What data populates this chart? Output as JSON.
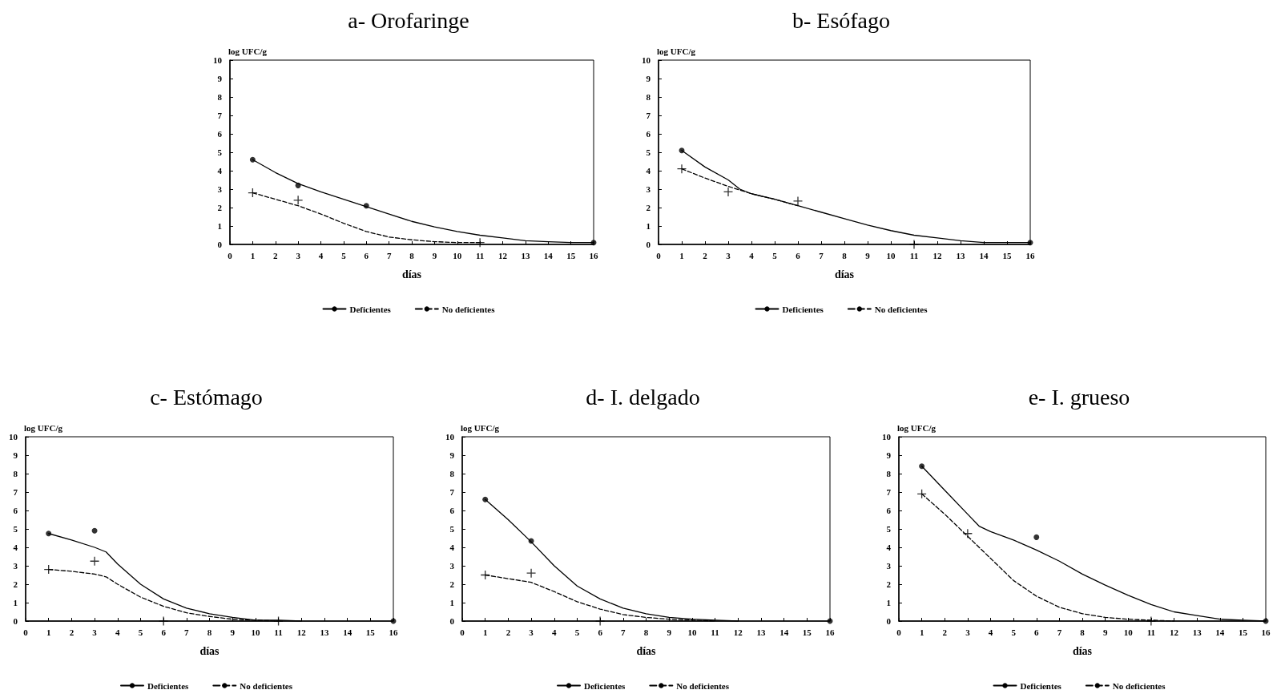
{
  "chart_data": [
    {
      "type": "line",
      "title": "a- Orofaringe",
      "xlabel": "días",
      "ylabel": "log UFC/g",
      "xlim": [
        0,
        16
      ],
      "xticks": [
        0,
        1,
        2,
        3,
        4,
        5,
        6,
        7,
        8,
        9,
        10,
        11,
        12,
        13,
        14,
        15,
        16
      ],
      "ylim": [
        0,
        10
      ],
      "yticks": [
        0,
        1,
        2,
        3,
        4,
        5,
        6,
        7,
        8,
        9,
        10
      ],
      "legend": "bottom",
      "grid": false,
      "series": [
        {
          "name": "Deficientes",
          "color": "#000000",
          "line_style": "solid",
          "marker": "none",
          "x": [
            1,
            2,
            3,
            4,
            5,
            6,
            7,
            8,
            9,
            10,
            11,
            12,
            13,
            14,
            15,
            16
          ],
          "values": [
            4.6,
            3.9,
            3.3,
            2.85,
            2.45,
            2.05,
            1.65,
            1.25,
            0.95,
            0.7,
            0.5,
            0.35,
            0.2,
            0.15,
            0.1,
            0.1
          ]
        },
        {
          "name": "No deficientes",
          "color": "#000000",
          "line_style": "dashed",
          "marker": "none",
          "x": [
            1,
            2,
            3,
            4,
            5,
            6,
            7,
            8,
            9,
            10,
            11
          ],
          "values": [
            2.8,
            2.45,
            2.1,
            1.65,
            1.15,
            0.7,
            0.4,
            0.25,
            0.15,
            0.1,
            0.1
          ]
        },
        {
          "type": "scatter",
          "color": "#000000",
          "marker": "circle",
          "x": [
            1,
            3,
            6,
            11,
            16
          ],
          "values": [
            4.6,
            3.2,
            2.1,
            null,
            0.1
          ]
        },
        {
          "type": "scatter",
          "color": "#000000",
          "marker": "cross",
          "x": [
            1,
            3,
            11
          ],
          "values": [
            2.8,
            2.4,
            0.1
          ]
        }
      ]
    },
    {
      "type": "line",
      "title": "b- Esófago",
      "xlabel": "días",
      "ylabel": "log UFC/g",
      "xlim": [
        0,
        16
      ],
      "xticks": [
        0,
        1,
        2,
        3,
        4,
        5,
        6,
        7,
        8,
        9,
        10,
        11,
        12,
        13,
        14,
        15,
        16
      ],
      "ylim": [
        0,
        10
      ],
      "yticks": [
        0,
        1,
        2,
        3,
        4,
        5,
        6,
        7,
        8,
        9,
        10
      ],
      "legend": "bottom",
      "grid": false,
      "series": [
        {
          "name": "Deficientes",
          "color": "#000000",
          "line_style": "solid",
          "marker": "none",
          "x": [
            1,
            2,
            3,
            3.5,
            4,
            5,
            6,
            7,
            8,
            9,
            10,
            11,
            12,
            13,
            14,
            15,
            16
          ],
          "values": [
            5.1,
            4.2,
            3.5,
            3.0,
            2.75,
            2.45,
            2.1,
            1.75,
            1.4,
            1.05,
            0.75,
            0.5,
            0.35,
            0.2,
            0.1,
            0.1,
            0.1
          ]
        },
        {
          "name": "No deficientes",
          "color": "#000000",
          "line_style": "dashed",
          "marker": "none",
          "x": [
            1,
            2,
            3,
            4,
            5,
            6
          ],
          "values": [
            4.1,
            3.6,
            3.15,
            2.75,
            2.45,
            2.1
          ]
        },
        {
          "type": "scatter",
          "color": "#000000",
          "marker": "circle",
          "x": [
            1,
            16
          ],
          "values": [
            5.1,
            0.1
          ]
        },
        {
          "type": "scatter",
          "color": "#000000",
          "marker": "cross",
          "x": [
            1,
            3,
            6,
            11
          ],
          "values": [
            4.1,
            2.85,
            2.35,
            0
          ]
        }
      ]
    },
    {
      "type": "line",
      "title": "c- Estómago",
      "xlabel": "días",
      "ylabel": "log UFC/g",
      "xlim": [
        0,
        16
      ],
      "xticks": [
        0,
        1,
        2,
        3,
        4,
        5,
        6,
        7,
        8,
        9,
        10,
        11,
        12,
        13,
        14,
        15,
        16
      ],
      "ylim": [
        0,
        10
      ],
      "yticks": [
        0,
        1,
        2,
        3,
        4,
        5,
        6,
        7,
        8,
        9,
        10
      ],
      "legend": "bottom",
      "grid": false,
      "series": [
        {
          "name": "Deficientes",
          "color": "#000000",
          "line_style": "solid",
          "marker": "none",
          "x": [
            1,
            2,
            3,
            3.5,
            4,
            5,
            6,
            7,
            8,
            9,
            10,
            11,
            12
          ],
          "values": [
            4.75,
            4.4,
            4.0,
            3.75,
            3.1,
            2.0,
            1.2,
            0.7,
            0.4,
            0.2,
            0.05,
            0.05,
            0
          ]
        },
        {
          "name": "No deficientes",
          "color": "#000000",
          "line_style": "dashed",
          "marker": "none",
          "x": [
            1,
            2,
            3,
            3.5,
            4,
            5,
            6,
            7,
            8,
            9,
            10,
            11
          ],
          "values": [
            2.8,
            2.7,
            2.55,
            2.4,
            2.0,
            1.3,
            0.8,
            0.45,
            0.25,
            0.1,
            0.05,
            0
          ]
        },
        {
          "type": "scatter",
          "color": "#000000",
          "marker": "circle",
          "x": [
            1,
            3,
            16
          ],
          "values": [
            4.75,
            4.9,
            0
          ]
        },
        {
          "type": "scatter",
          "color": "#000000",
          "marker": "cross",
          "x": [
            1,
            3,
            6,
            11
          ],
          "values": [
            2.8,
            3.25,
            0,
            0
          ]
        }
      ]
    },
    {
      "type": "line",
      "title": "d- I. delgado",
      "xlabel": "días",
      "ylabel": "log UFC/g",
      "xlim": [
        0,
        16
      ],
      "xticks": [
        0,
        1,
        2,
        3,
        4,
        5,
        6,
        7,
        8,
        9,
        10,
        11,
        12,
        13,
        14,
        15,
        16
      ],
      "ylim": [
        0,
        10
      ],
      "yticks": [
        0,
        1,
        2,
        3,
        4,
        5,
        6,
        7,
        8,
        9,
        10
      ],
      "legend": "bottom",
      "grid": false,
      "series": [
        {
          "name": "Deficientes",
          "color": "#000000",
          "line_style": "solid",
          "marker": "none",
          "x": [
            1,
            2,
            3,
            4,
            5,
            6,
            7,
            8,
            9,
            10,
            11,
            12
          ],
          "values": [
            6.6,
            5.5,
            4.3,
            3.0,
            1.9,
            1.2,
            0.7,
            0.4,
            0.2,
            0.1,
            0.05,
            0
          ]
        },
        {
          "name": "No deficientes",
          "color": "#000000",
          "line_style": "dashed",
          "marker": "none",
          "x": [
            1,
            2,
            3,
            4,
            5,
            6,
            7,
            8,
            9,
            10,
            11
          ],
          "values": [
            2.5,
            2.3,
            2.1,
            1.6,
            1.05,
            0.65,
            0.35,
            0.2,
            0.1,
            0.05,
            0
          ]
        },
        {
          "type": "scatter",
          "color": "#000000",
          "marker": "circle",
          "x": [
            1,
            3,
            16
          ],
          "values": [
            6.6,
            4.35,
            0
          ]
        },
        {
          "type": "scatter",
          "color": "#000000",
          "marker": "cross",
          "x": [
            1,
            3,
            6
          ],
          "values": [
            2.5,
            2.6,
            0
          ]
        }
      ]
    },
    {
      "type": "line",
      "title": "e- I. grueso",
      "xlabel": "días",
      "ylabel": "log UFC/g",
      "xlim": [
        0,
        16
      ],
      "xticks": [
        0,
        1,
        2,
        3,
        4,
        5,
        6,
        7,
        8,
        9,
        10,
        11,
        12,
        13,
        14,
        15,
        16
      ],
      "ylim": [
        0,
        10
      ],
      "yticks": [
        0,
        1,
        2,
        3,
        4,
        5,
        6,
        7,
        8,
        9,
        10
      ],
      "legend": "bottom",
      "grid": false,
      "series": [
        {
          "name": "Deficientes",
          "color": "#000000",
          "line_style": "solid",
          "marker": "none",
          "x": [
            1,
            2,
            3,
            3.5,
            4,
            5,
            6,
            7,
            8,
            9,
            10,
            11,
            12,
            13,
            14,
            15,
            16
          ],
          "values": [
            8.4,
            7.1,
            5.8,
            5.15,
            4.85,
            4.4,
            3.85,
            3.25,
            2.55,
            1.95,
            1.4,
            0.9,
            0.5,
            0.3,
            0.1,
            0.05,
            0
          ]
        },
        {
          "name": "No deficientes",
          "color": "#000000",
          "line_style": "dashed",
          "marker": "none",
          "x": [
            1,
            2,
            3,
            4,
            5,
            6,
            7,
            8,
            9,
            10,
            11,
            12
          ],
          "values": [
            6.9,
            5.8,
            4.6,
            3.4,
            2.2,
            1.35,
            0.75,
            0.4,
            0.2,
            0.1,
            0.05,
            0
          ]
        },
        {
          "type": "scatter",
          "color": "#000000",
          "marker": "circle",
          "x": [
            1,
            3,
            6,
            16
          ],
          "values": [
            8.4,
            null,
            4.55,
            0
          ]
        },
        {
          "type": "scatter",
          "color": "#000000",
          "marker": "cross",
          "x": [
            1,
            3,
            11
          ],
          "values": [
            6.9,
            4.75,
            0
          ]
        }
      ]
    }
  ]
}
